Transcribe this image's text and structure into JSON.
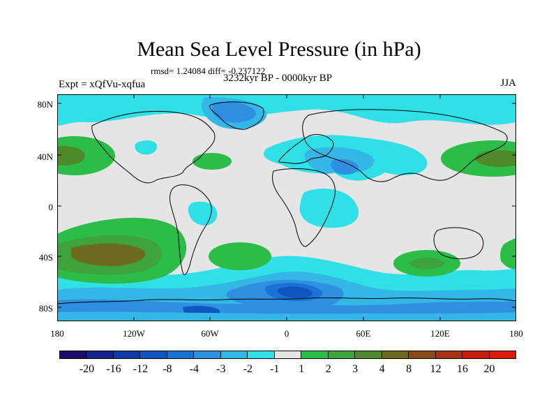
{
  "title": "Mean Sea Level Pressure (in hPa)",
  "stats": "rmsd= 1.24084 diff= -0.237122",
  "experiment": "Expt = xQfVu-xqfua",
  "period": "3232kyr BP - 0000kyr BP",
  "season": "JJA",
  "lat_labels": [
    "80N",
    "40N",
    "0",
    "40S",
    "80S"
  ],
  "lon_labels": [
    "180",
    "120W",
    "60W",
    "0",
    "60E",
    "120E",
    "180"
  ],
  "colorbar": {
    "labels": [
      "-20",
      "-16",
      "-12",
      "-8",
      "-4",
      "-3",
      "-2",
      "-1",
      "1",
      "2",
      "3",
      "4",
      "8",
      "12",
      "16",
      "20"
    ],
    "colors": [
      "#1c0f6b",
      "#12238c",
      "#0c3aa8",
      "#0f55bf",
      "#1a72d4",
      "#2f8fe0",
      "#34b6e6",
      "#2fe0e6",
      "#e5e5e5",
      "#2bbd48",
      "#3ea33a",
      "#4e8a2a",
      "#6d6b1f",
      "#8a4a18",
      "#a83212",
      "#c81e0e",
      "#e0180c"
    ]
  }
}
